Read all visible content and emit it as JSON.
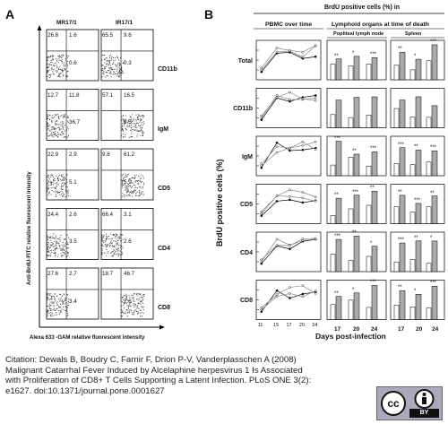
{
  "panelA": {
    "letter": "A",
    "columns": [
      "MR17/1",
      "IR17/1"
    ],
    "yaxis_label": "Anti-BrdU-FITC relative fluorescent  intensity",
    "xaxis_label": "Alexa 633 -GAM relative fluorescent  intensity",
    "rows": [
      {
        "marker": "CD11b",
        "mr": [
          "26.8",
          "1.6",
          "",
          "0.6"
        ],
        "ir": [
          "65.5",
          "9.6",
          "",
          "0.3"
        ]
      },
      {
        "marker": "IgM",
        "mr": [
          "12.7",
          "11.8",
          "",
          "36.7"
        ],
        "ir": [
          "57.1",
          "16.5",
          "",
          "8.5"
        ]
      },
      {
        "marker": "CD5",
        "mr": [
          "22.9",
          "2.9",
          "",
          "5.1"
        ],
        "ir": [
          "9.8",
          "61.2",
          "",
          "5.9"
        ]
      },
      {
        "marker": "CD4",
        "mr": [
          "24.4",
          "2.6",
          "",
          "3.5"
        ],
        "ir": [
          "66.4",
          "3.1",
          "",
          "2.6"
        ]
      },
      {
        "marker": "CD8",
        "mr": [
          "27.6",
          "2.7",
          "",
          "3.4"
        ],
        "ir": [
          "18.7",
          "46.7",
          "",
          "2.8"
        ]
      }
    ]
  },
  "panelB": {
    "letter": "B",
    "title": "BrdU  positive  cells (%) in",
    "col1": "PBMC over time",
    "col2": "Lymphoid organs at time of death",
    "sub1": "Popliteal  lymph node",
    "sub2": "Spleen",
    "ylabel": "BrdU positive cells (%)",
    "xlabel": "Days  post-infection",
    "rows": [
      "Total",
      "CD11b",
      "IgM",
      "CD5",
      "CD4",
      "CD8"
    ],
    "days_ticks": [
      "11",
      "15",
      "17",
      "20",
      "24"
    ],
    "organ_days": [
      "17",
      "20",
      "24",
      "17",
      "20",
      "24"
    ],
    "signif": [
      "**",
      "*",
      "***",
      "**",
      "***"
    ]
  },
  "citation": {
    "line1": "Citation: Dewals B, Boudry C, Farnir F, Drion P-V, Vanderplasschen A (2008)",
    "line2": "Malignant Catarrhal Fever Induced by Alcelaphine herpesvirus 1 Is Associated",
    "line3": "with Proliferation of CD8+ T Cells Supporting a Latent Infection. PLoS ONE 3(2):",
    "line4": "e1627. doi:10.1371/journal.pone.0001627"
  },
  "license": {
    "cc": "cc",
    "by": "BY"
  }
}
